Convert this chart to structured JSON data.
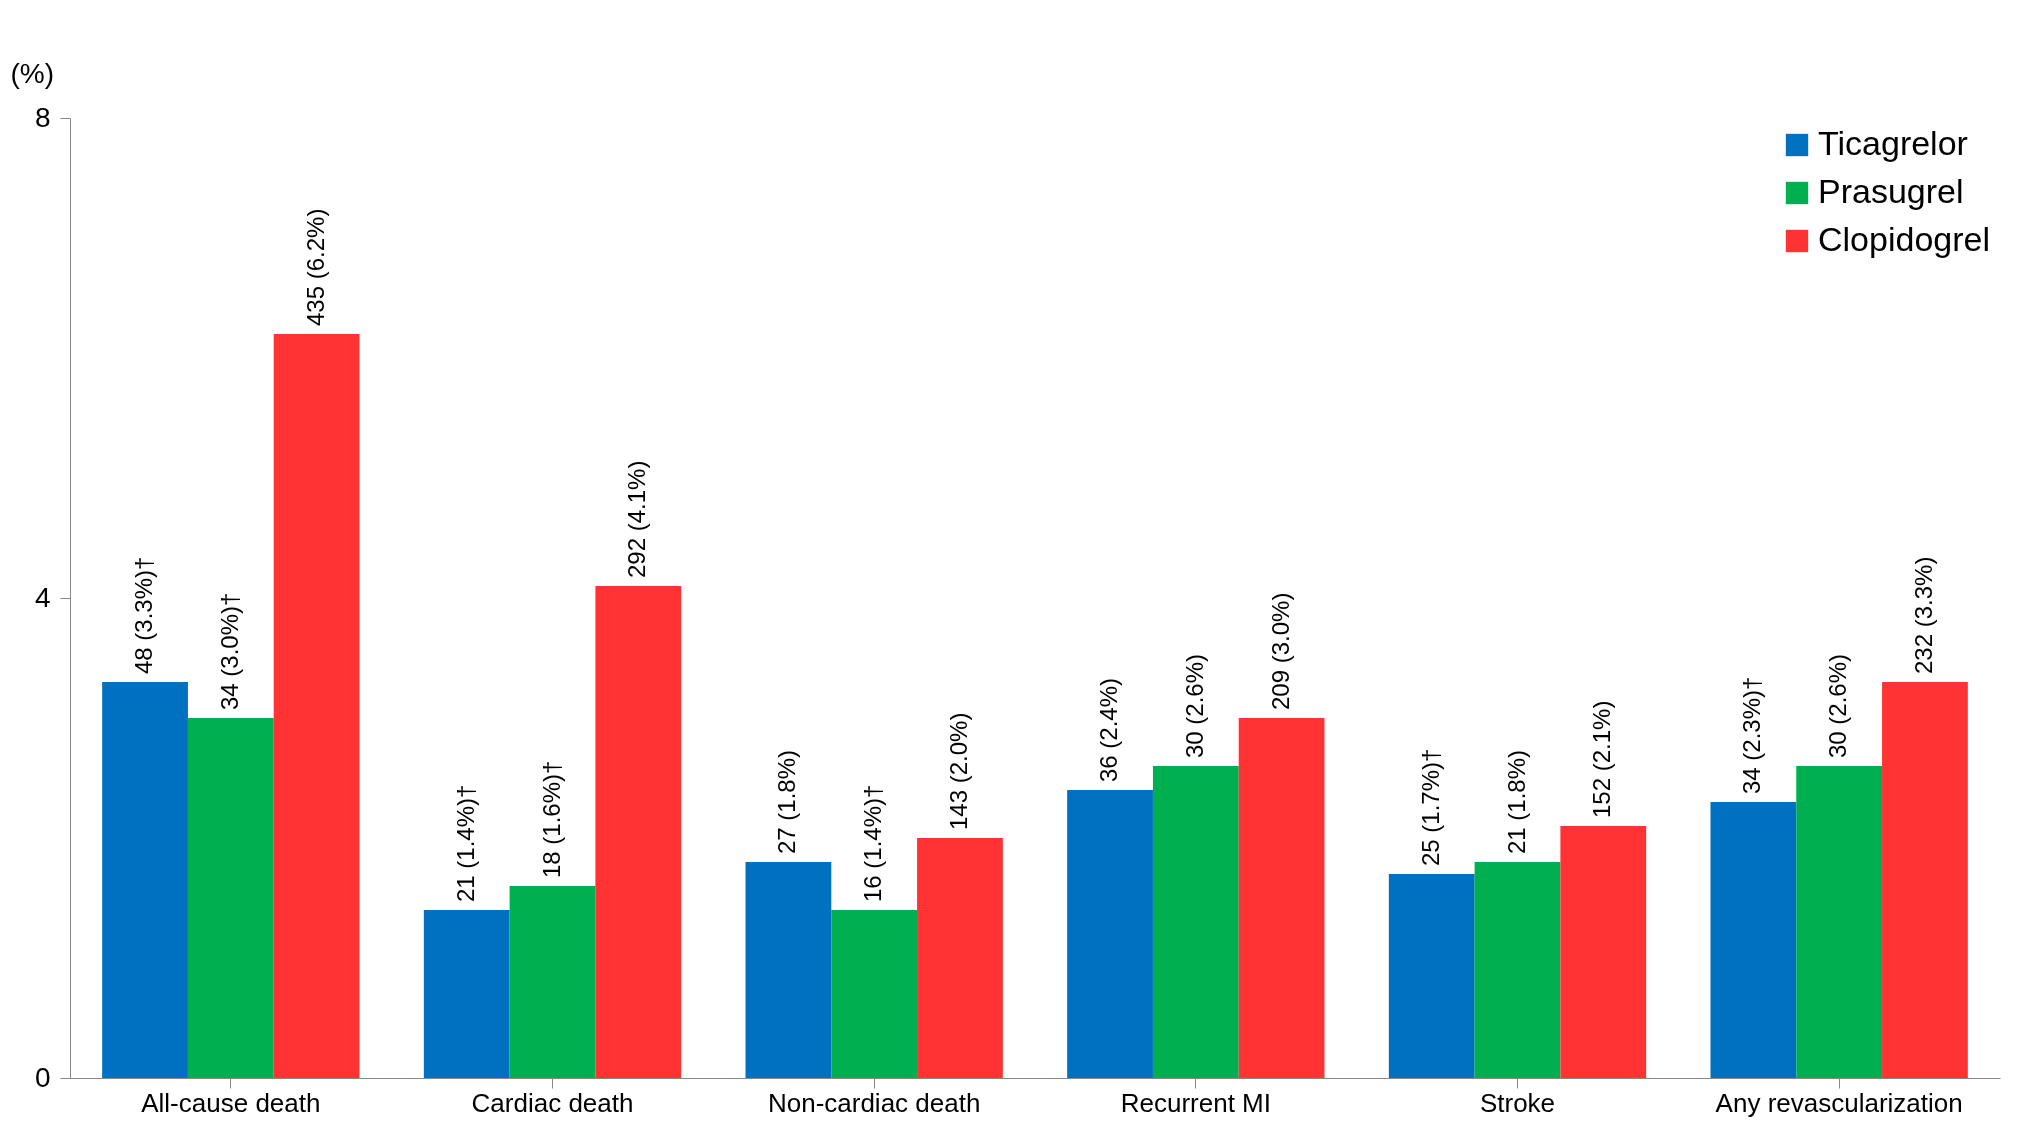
{
  "chart_data": {
    "type": "bar",
    "ylabel": "(%)",
    "categories": [
      "All-cause death",
      "Cardiac death",
      "Non-cardiac death",
      "Recurrent MI",
      "Stroke",
      "Any revascularization"
    ],
    "series": [
      {
        "name": "Ticagrelor",
        "color": "#0070c0",
        "values": [
          3.3,
          1.4,
          1.8,
          2.4,
          1.7,
          2.3
        ],
        "value_labels": [
          "48 (3.3%)†",
          "21 (1.4%)†",
          "27 (1.8%)",
          "36 (2.4%)",
          "25 (1.7%)†",
          "34 (2.3%)†"
        ]
      },
      {
        "name": "Prasugrel",
        "color": "#00b050",
        "values": [
          3.0,
          1.6,
          1.4,
          2.6,
          1.8,
          2.6
        ],
        "value_labels": [
          "34 (3.0%)†",
          "18 (1.6%)†",
          "16 (1.4%)†",
          "30 (2.6%)",
          "21 (1.8%)",
          "30 (2.6%)"
        ]
      },
      {
        "name": "Clopidogrel",
        "color": "#ff3333",
        "values": [
          6.2,
          4.1,
          2.0,
          3.0,
          2.1,
          3.3
        ],
        "value_labels": [
          "435 (6.2%)",
          "292 (4.1%)",
          "143 (2.0%)",
          "209 (3.0%)",
          "152 (2.1%)",
          "232 (3.3%)"
        ]
      }
    ],
    "ylim": [
      0,
      8
    ],
    "yticks": [
      0,
      4,
      8
    ],
    "grid": false,
    "legend": "top right"
  }
}
